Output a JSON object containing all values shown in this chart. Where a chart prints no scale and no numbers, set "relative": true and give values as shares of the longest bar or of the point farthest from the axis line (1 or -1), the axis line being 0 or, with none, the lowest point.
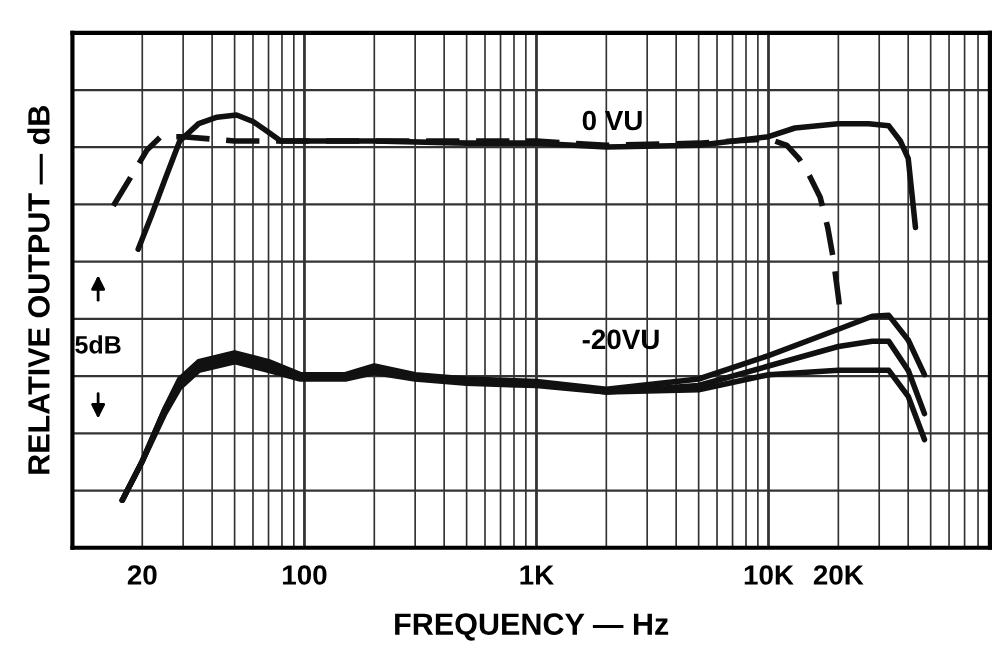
{
  "chart_data": {
    "type": "line",
    "relative": true,
    "xlabel": "FREQUENCY — Hz",
    "ylabel": "RELATIVE OUTPUT — dB",
    "log": "x",
    "xlim": [
      10,
      90000
    ],
    "xticks": [
      20,
      100,
      {
        "value": 1000,
        "label": "1K"
      },
      {
        "value": 10000,
        "label": "10K"
      },
      {
        "value": 20000,
        "label": "20K"
      }
    ],
    "tick_labels": "x",
    "grid": true,
    "legend": false,
    "marker": "none",
    "annotations": [
      "0 VU",
      "-20VU",
      "5dB"
    ],
    "series": [
      {
        "color": "#111111",
        "line_style": "dashed",
        "x": [
          15,
          18,
          21,
          24,
          30,
          50,
          100,
          200,
          500,
          1000,
          2000,
          5000,
          10000,
          12000,
          13500,
          15000,
          16700,
          18000,
          19000,
          20000,
          20500
        ],
        "values": [
          0.79,
          0.86,
          0.92,
          0.95,
          0.95,
          0.94,
          0.94,
          0.94,
          0.94,
          0.94,
          0.93,
          0.935,
          0.945,
          0.93,
          0.9,
          0.86,
          0.81,
          0.74,
          0.67,
          0.58,
          0.53
        ]
      },
      {
        "color": "#111111",
        "line_style": "solid",
        "x": [
          19.2,
          22,
          25,
          29,
          35,
          42,
          51,
          60,
          70,
          79,
          100,
          200,
          500,
          1000,
          2000,
          5000,
          10000,
          13000,
          20000,
          27000,
          33000,
          37000,
          40000,
          43000
        ],
        "values": [
          0.69,
          0.77,
          0.85,
          0.94,
          0.98,
          0.995,
          1.0,
          0.985,
          0.96,
          0.94,
          0.94,
          0.94,
          0.935,
          0.935,
          0.926,
          0.93,
          0.95,
          0.97,
          0.98,
          0.98,
          0.975,
          0.94,
          0.9,
          0.74
        ]
      },
      {
        "color": "#111111",
        "line_style": "solid",
        "x": [
          16.4,
          20,
          25,
          29,
          35,
          50,
          70,
          96,
          150,
          200,
          300,
          500,
          1000,
          2000,
          5000,
          10000,
          20000,
          28000,
          33000,
          40000,
          47000
        ],
        "values": [
          0.11,
          0.2,
          0.32,
          0.39,
          0.43,
          0.45,
          0.43,
          0.4,
          0.4,
          0.42,
          0.4,
          0.39,
          0.384,
          0.366,
          0.39,
          0.444,
          0.505,
          0.535,
          0.537,
          0.48,
          0.4
        ]
      },
      {
        "color": "#111111",
        "line_style": "solid",
        "x": [
          16.4,
          20,
          25,
          29,
          35,
          50,
          70,
          96,
          150,
          200,
          300,
          500,
          1000,
          2000,
          5000,
          10000,
          20000,
          28000,
          33000,
          40000,
          47000
        ],
        "values": [
          0.11,
          0.2,
          0.32,
          0.38,
          0.42,
          0.44,
          0.42,
          0.395,
          0.395,
          0.415,
          0.395,
          0.385,
          0.38,
          0.36,
          0.375,
          0.42,
          0.465,
          0.477,
          0.477,
          0.41,
          0.31
        ]
      },
      {
        "color": "#111111",
        "line_style": "solid",
        "x": [
          16.4,
          20,
          25,
          29,
          35,
          50,
          70,
          96,
          150,
          200,
          300,
          500,
          1000,
          2000,
          5000,
          10000,
          20000,
          28000,
          33000,
          40000,
          47000
        ],
        "values": [
          0.11,
          0.2,
          0.31,
          0.37,
          0.41,
          0.43,
          0.41,
          0.39,
          0.39,
          0.405,
          0.39,
          0.38,
          0.375,
          0.36,
          0.365,
          0.4,
          0.41,
          0.41,
          0.41,
          0.35,
          0.25
        ]
      }
    ]
  }
}
